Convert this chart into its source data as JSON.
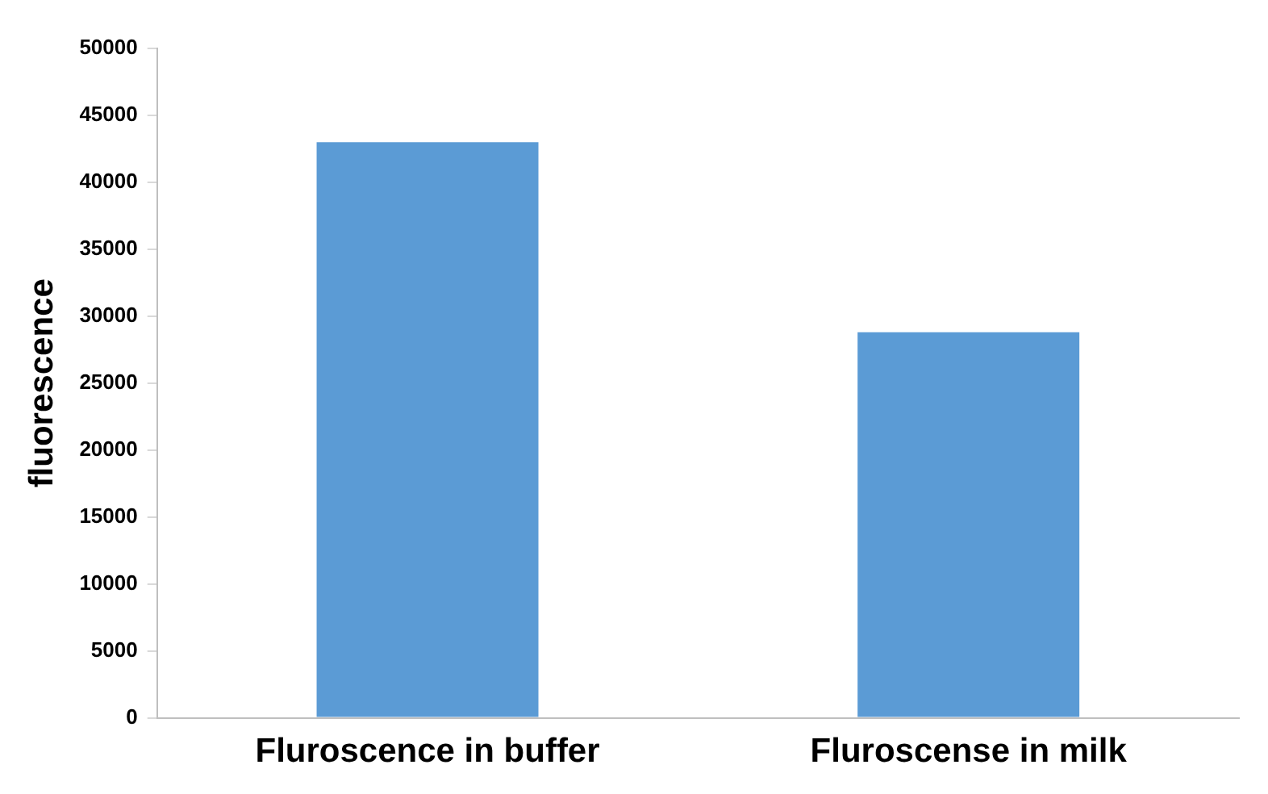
{
  "chart_data": {
    "type": "bar",
    "ylabel": "fluorescence",
    "categories": [
      "Fluroscence in buffer",
      "Fluroscense in milk"
    ],
    "values": [
      43000,
      28800
    ],
    "color": "#5b9bd5",
    "ylim": [
      0,
      50000
    ],
    "yticks": [
      0,
      5000,
      10000,
      15000,
      20000,
      25000,
      30000,
      35000,
      40000,
      45000,
      50000
    ],
    "grid": false,
    "legend": false
  }
}
